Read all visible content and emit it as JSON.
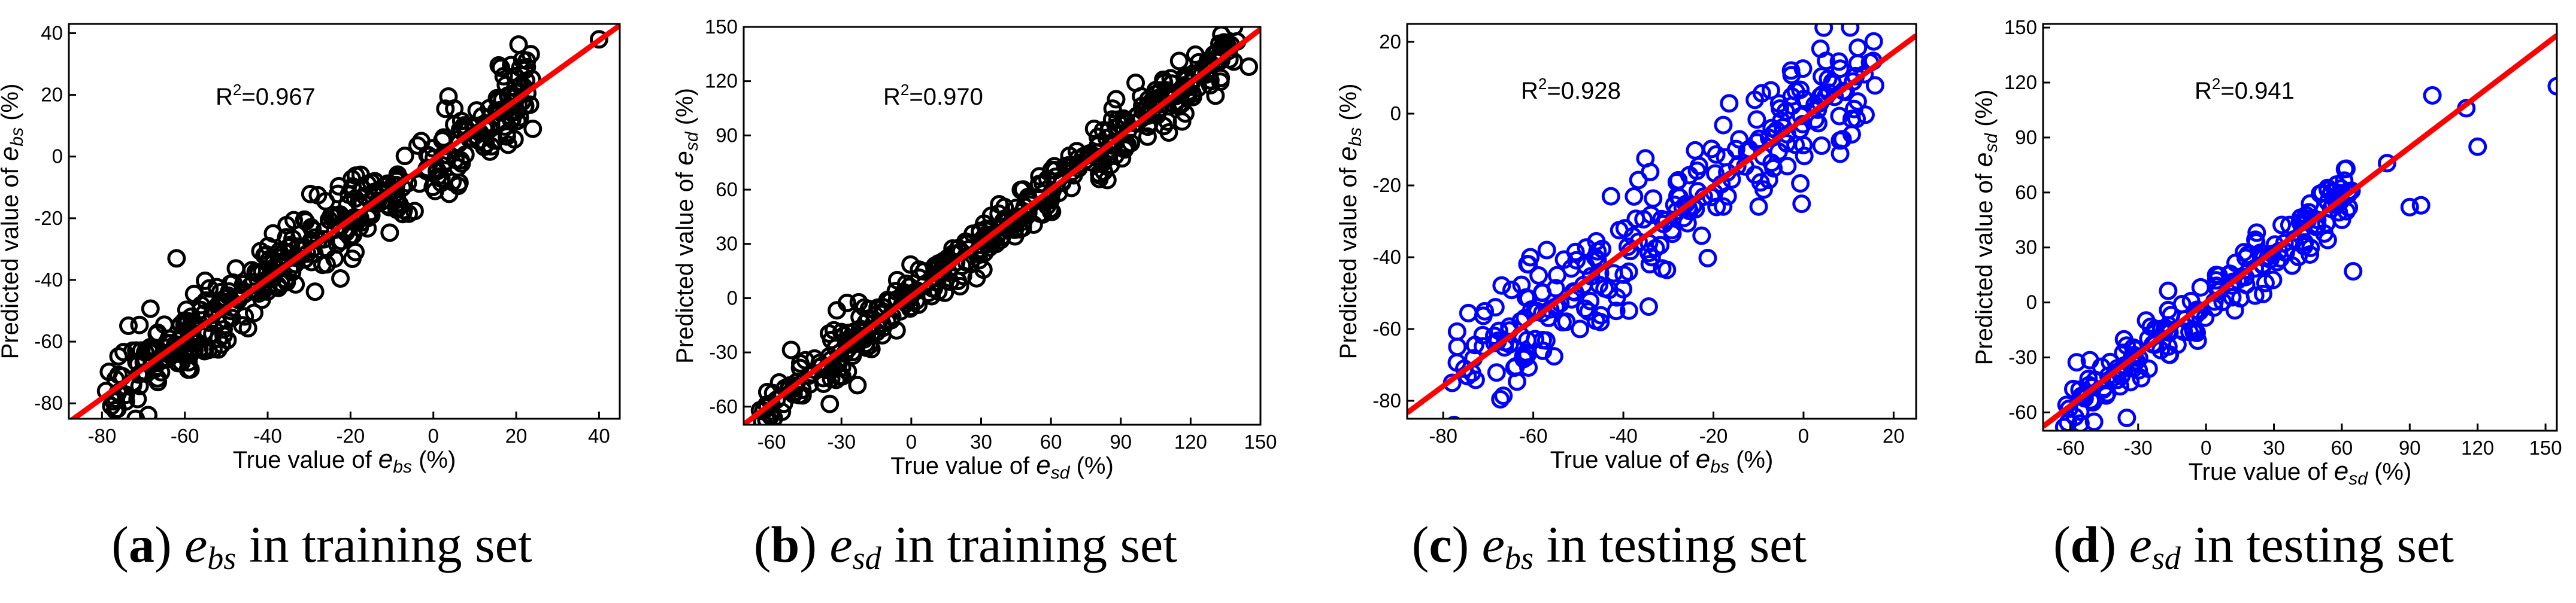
{
  "chart_data": [
    {
      "type": "scatter",
      "panel_label": "a",
      "symbol": "e",
      "symbol_sub": "bs",
      "caption_text": "in training set",
      "x_label": "True value of",
      "y_label": "Predicted value of",
      "unit": "(%)",
      "r2_prefix": "R",
      "r2_value": "=0.967",
      "xlim": [
        -88,
        45
      ],
      "ylim": [
        -85,
        43
      ],
      "xticks": [
        -80,
        -60,
        -40,
        -20,
        0,
        20,
        40
      ],
      "yticks": [
        -80,
        -60,
        -40,
        -20,
        0,
        20,
        40
      ],
      "fit": {
        "slope": 0.967,
        "intercept": -1.0
      },
      "scatter": {
        "n": 420,
        "xmin": -80,
        "xmax": 24,
        "noise": 6.5
      },
      "extra_points": [
        [
          40,
          38
        ],
        [
          -62,
          -33
        ],
        [
          -79,
          -76
        ],
        [
          24,
          9
        ]
      ],
      "marker_color": "#000000",
      "line_color": "#ff0000"
    },
    {
      "type": "scatter",
      "panel_label": "b",
      "symbol": "e",
      "symbol_sub": "sd",
      "caption_text": "in training set",
      "x_label": "True value of",
      "y_label": "Predicted value of",
      "unit": "(%)",
      "r2_prefix": "R",
      "r2_value": "=0.970",
      "xlim": [
        -72,
        150
      ],
      "ylim": [
        -70,
        150
      ],
      "xticks": [
        -60,
        -30,
        0,
        30,
        60,
        90,
        120,
        150
      ],
      "yticks": [
        -60,
        -30,
        0,
        30,
        60,
        90,
        120,
        150
      ],
      "fit": {
        "slope": 0.985,
        "intercept": 1.0
      },
      "scatter": {
        "n": 420,
        "xmin": -65,
        "xmax": 140,
        "noise": 7.5
      },
      "extra_points": [
        [
          145,
          128
        ],
        [
          105,
          115
        ],
        [
          88,
          110
        ],
        [
          -65,
          -62
        ]
      ],
      "marker_color": "#000000",
      "line_color": "#ff0000"
    },
    {
      "type": "scatter",
      "panel_label": "c",
      "symbol": "e",
      "symbol_sub": "bs",
      "caption_text": "in testing set",
      "x_label": "True value of",
      "y_label": "Predicted value of",
      "unit": "(%)",
      "r2_prefix": "R",
      "r2_value": "=0.928",
      "xlim": [
        -88,
        25
      ],
      "ylim": [
        -85,
        25
      ],
      "xticks": [
        -80,
        -60,
        -40,
        -20,
        0,
        20
      ],
      "yticks": [
        -80,
        -60,
        -40,
        -20,
        0,
        20
      ],
      "fit": {
        "slope": 0.93,
        "intercept": -1.5
      },
      "scatter": {
        "n": 260,
        "xmin": -78,
        "xmax": 16,
        "noise": 8.5
      },
      "extra_points": [
        [
          12,
          14
        ],
        [
          -57,
          -38
        ],
        [
          -78,
          -75
        ]
      ],
      "marker_color": "#0000ff",
      "line_color": "#ff0000"
    },
    {
      "type": "scatter",
      "panel_label": "d",
      "symbol": "e",
      "symbol_sub": "sd",
      "caption_text": "in testing set",
      "x_label": "True value of",
      "y_label": "Predicted value of",
      "unit": "(%)",
      "r2_prefix": "R",
      "r2_value": "=0.941",
      "xlim": [
        -72,
        155
      ],
      "ylim": [
        -70,
        152
      ],
      "xticks": [
        -60,
        -30,
        0,
        30,
        60,
        90,
        120,
        150
      ],
      "yticks": [
        -60,
        -30,
        0,
        30,
        60,
        90,
        120,
        150
      ],
      "fit": {
        "slope": 0.94,
        "intercept": 0.0
      },
      "scatter": {
        "n": 180,
        "xmin": -65,
        "xmax": 65,
        "noise": 9.0
      },
      "extra_points": [
        [
          100,
          113
        ],
        [
          115,
          106
        ],
        [
          120,
          85
        ],
        [
          155,
          118
        ],
        [
          90,
          52
        ],
        [
          95,
          53
        ],
        [
          80,
          76
        ],
        [
          62,
          73
        ],
        [
          65,
          17
        ],
        [
          -35,
          -63
        ]
      ],
      "marker_color": "#0000ff",
      "line_color": "#ff0000"
    }
  ]
}
